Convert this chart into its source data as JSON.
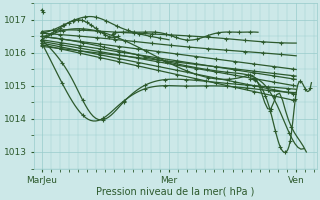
{
  "xlabel": "Pression niveau de la mer( hPa )",
  "xtick_labels": [
    "MarJeu",
    "Mer",
    "Ven"
  ],
  "xtick_positions": [
    0.0,
    0.5,
    1.0
  ],
  "ylim": [
    1012.5,
    1017.5
  ],
  "yticks": [
    1013,
    1014,
    1015,
    1016,
    1017
  ],
  "bg_color": "#cce8e8",
  "grid_color": "#99cccc",
  "line_color": "#2d5a2d",
  "marker": "+",
  "markersize": 3,
  "linewidth": 0.9,
  "figsize": [
    3.2,
    2.0
  ],
  "dpi": 100
}
